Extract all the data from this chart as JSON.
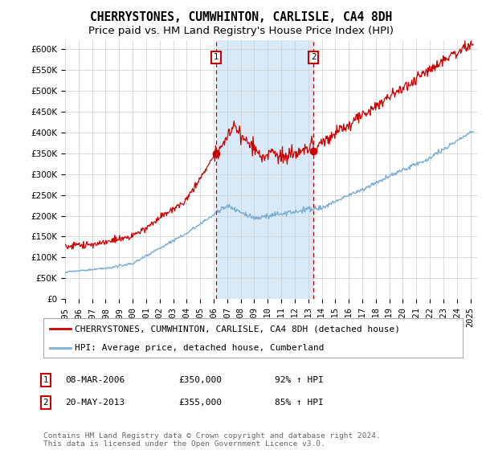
{
  "title": "CHERRYSTONES, CUMWHINTON, CARLISLE, CA4 8DH",
  "subtitle": "Price paid vs. HM Land Registry's House Price Index (HPI)",
  "xlim": [
    1995.0,
    2025.5
  ],
  "ylim": [
    0,
    620000
  ],
  "yticks": [
    0,
    50000,
    100000,
    150000,
    200000,
    250000,
    300000,
    350000,
    400000,
    450000,
    500000,
    550000,
    600000
  ],
  "ytick_labels": [
    "£0",
    "£50K",
    "£100K",
    "£150K",
    "£200K",
    "£250K",
    "£300K",
    "£350K",
    "£400K",
    "£450K",
    "£500K",
    "£550K",
    "£600K"
  ],
  "purchase1_year": 2006.2,
  "purchase1_price": 350000,
  "purchase2_year": 2013.38,
  "purchase2_price": 355000,
  "purchase1_label": "1",
  "purchase2_label": "2",
  "red_color": "#cc0000",
  "blue_color": "#7aadd4",
  "shade_color": "#d8eaf7",
  "legend_label_red": "CHERRYSTONES, CUMWHINTON, CARLISLE, CA4 8DH (detached house)",
  "legend_label_blue": "HPI: Average price, detached house, Cumberland",
  "table_rows": [
    {
      "num": "1",
      "date": "08-MAR-2006",
      "price": "£350,000",
      "hpi": "92% ↑ HPI"
    },
    {
      "num": "2",
      "date": "20-MAY-2013",
      "price": "£355,000",
      "hpi": "85% ↑ HPI"
    }
  ],
  "footer": "Contains HM Land Registry data © Crown copyright and database right 2024.\nThis data is licensed under the Open Government Licence v3.0.",
  "background_color": "#ffffff",
  "grid_color": "#cccccc",
  "title_fontsize": 10.5,
  "subtitle_fontsize": 9.5,
  "tick_fontsize": 7.5,
  "legend_fontsize": 8,
  "footer_fontsize": 6.8
}
